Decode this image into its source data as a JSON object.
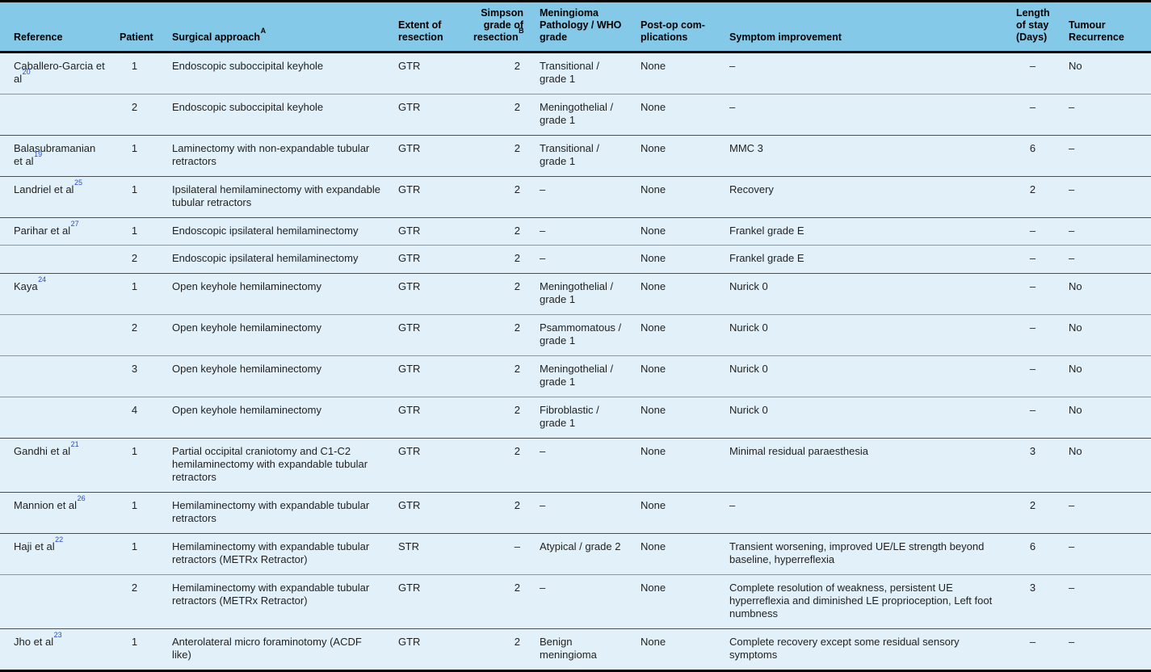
{
  "colors": {
    "header_bg": "#85c9e8",
    "row_bg": "#e2f1f9",
    "citation_link": "#2b49c7",
    "row_line": "#8f989e",
    "group_line": "#4a4f52",
    "frame": "#000000",
    "text": "#1f1f1f"
  },
  "table": {
    "columns": [
      {
        "key": "reference",
        "label": "Reference",
        "sup": ""
      },
      {
        "key": "patient",
        "label": "Patient",
        "sup": ""
      },
      {
        "key": "approach",
        "label": "Surgical approach",
        "sup": "A"
      },
      {
        "key": "extent",
        "label": "Extent of resection",
        "sup": ""
      },
      {
        "key": "simpson",
        "label": "Simpson grade of resection",
        "sup": "B"
      },
      {
        "key": "pathology",
        "label": "Meningioma Pathology / WHO grade",
        "sup": ""
      },
      {
        "key": "postop",
        "label": "Post-op com-plications",
        "sup": ""
      },
      {
        "key": "symptom",
        "label": "Symptom improvement",
        "sup": ""
      },
      {
        "key": "stay",
        "label": "Length of stay (Days)",
        "sup": ""
      },
      {
        "key": "recurrence",
        "label": "Tumour Recurrence",
        "sup": ""
      }
    ],
    "rows": [
      {
        "group_start": true,
        "reference": {
          "text": "Caballero-Garcia et al",
          "sup": "20"
        },
        "patient": "1",
        "approach": "Endoscopic suboccipital keyhole",
        "extent": "GTR",
        "simpson": "2",
        "pathology": "Transitional / grade 1",
        "postop": "None",
        "symptom": "–",
        "stay": "–",
        "recurrence": "No"
      },
      {
        "group_start": false,
        "reference": {
          "text": "",
          "sup": ""
        },
        "patient": "2",
        "approach": "Endoscopic suboccipital keyhole",
        "extent": "GTR",
        "simpson": "2",
        "pathology": "Meningothelial / grade 1",
        "postop": "None",
        "symptom": "–",
        "stay": "–",
        "recurrence": "–"
      },
      {
        "group_start": true,
        "reference": {
          "text": "Balasubramanian et al",
          "sup": "19"
        },
        "patient": "1",
        "approach": "Laminectomy with non-expandable tubular retractors",
        "extent": "GTR",
        "simpson": "2",
        "pathology": "Transitional / grade 1",
        "postop": "None",
        "symptom": "MMC 3",
        "stay": "6",
        "recurrence": "–"
      },
      {
        "group_start": true,
        "reference": {
          "text": "Landriel et al",
          "sup": "25"
        },
        "patient": "1",
        "approach": "Ipsilateral hemilaminectomy with expandable tubular retractors",
        "extent": "GTR",
        "simpson": "2",
        "pathology": "–",
        "postop": "None",
        "symptom": "Recovery",
        "stay": "2",
        "recurrence": "–"
      },
      {
        "group_start": true,
        "reference": {
          "text": "Parihar et al",
          "sup": "27"
        },
        "patient": "1",
        "approach": "Endoscopic ipsilateral hemilaminectomy",
        "extent": "GTR",
        "simpson": "2",
        "pathology": "–",
        "postop": "None",
        "symptom": "Frankel grade E",
        "stay": "–",
        "recurrence": "–"
      },
      {
        "group_start": false,
        "reference": {
          "text": "",
          "sup": ""
        },
        "patient": "2",
        "approach": "Endoscopic ipsilateral hemilaminectomy",
        "extent": "GTR",
        "simpson": "2",
        "pathology": "–",
        "postop": "None",
        "symptom": "Frankel grade E",
        "stay": "–",
        "recurrence": "–"
      },
      {
        "group_start": true,
        "reference": {
          "text": "Kaya",
          "sup": "24"
        },
        "patient": "1",
        "approach": "Open keyhole hemilaminectomy",
        "extent": "GTR",
        "simpson": "2",
        "pathology": "Meningothelial / grade 1",
        "postop": "None",
        "symptom": "Nurick 0",
        "stay": "–",
        "recurrence": "No"
      },
      {
        "group_start": false,
        "reference": {
          "text": "",
          "sup": ""
        },
        "patient": "2",
        "approach": "Open keyhole hemilaminectomy",
        "extent": "GTR",
        "simpson": "2",
        "pathology": "Psammomatous / grade 1",
        "postop": "None",
        "symptom": "Nurick 0",
        "stay": "–",
        "recurrence": "No"
      },
      {
        "group_start": false,
        "reference": {
          "text": "",
          "sup": ""
        },
        "patient": "3",
        "approach": "Open keyhole hemilaminectomy",
        "extent": "GTR",
        "simpson": "2",
        "pathology": "Meningothelial / grade 1",
        "postop": "None",
        "symptom": "Nurick 0",
        "stay": "–",
        "recurrence": "No"
      },
      {
        "group_start": false,
        "reference": {
          "text": "",
          "sup": ""
        },
        "patient": "4",
        "approach": "Open keyhole hemilaminectomy",
        "extent": "GTR",
        "simpson": "2",
        "pathology": "Fibroblastic / grade 1",
        "postop": "None",
        "symptom": "Nurick 0",
        "stay": "–",
        "recurrence": "No"
      },
      {
        "group_start": true,
        "reference": {
          "text": "Gandhi et al",
          "sup": "21"
        },
        "patient": "1",
        "approach": "Partial occipital craniotomy and C1-C2 hemilaminectomy with expandable tubular retractors",
        "extent": "GTR",
        "simpson": "2",
        "pathology": "–",
        "postop": "None",
        "symptom": "Minimal residual paraesthesia",
        "stay": "3",
        "recurrence": "No"
      },
      {
        "group_start": true,
        "reference": {
          "text": "Mannion et al",
          "sup": "26"
        },
        "patient": "1",
        "approach": "Hemilaminectomy with expandable tubular retractors",
        "extent": "GTR",
        "simpson": "2",
        "pathology": "–",
        "postop": "None",
        "symptom": "–",
        "stay": "2",
        "recurrence": "–"
      },
      {
        "group_start": true,
        "reference": {
          "text": "Haji et al",
          "sup": "22"
        },
        "patient": "1",
        "approach": "Hemilaminectomy with expandable tubular retractors (METRx Retractor)",
        "extent": "STR",
        "simpson": "–",
        "pathology": "Atypical / grade 2",
        "postop": "None",
        "symptom": "Transient worsening, improved UE/LE strength beyond baseline, hyperreflexia",
        "stay": "6",
        "recurrence": "–"
      },
      {
        "group_start": false,
        "reference": {
          "text": "",
          "sup": ""
        },
        "patient": "2",
        "approach": "Hemilaminectomy with expandable tubular retractors (METRx Retractor)",
        "extent": "GTR",
        "simpson": "2",
        "pathology": "–",
        "postop": "None",
        "symptom": "Complete resolution of weakness, persistent UE hyperreflexia and diminished LE proprioception, Left foot numbness",
        "stay": "3",
        "recurrence": "–"
      },
      {
        "group_start": true,
        "reference": {
          "text": "Jho et al",
          "sup": "23"
        },
        "patient": "1",
        "approach": "Anterolateral micro foraminotomy (ACDF like)",
        "extent": "GTR",
        "simpson": "2",
        "pathology": "Benign meningioma",
        "postop": "None",
        "symptom": "Complete recovery except some residual sensory symptoms",
        "stay": "–",
        "recurrence": "–"
      }
    ]
  }
}
